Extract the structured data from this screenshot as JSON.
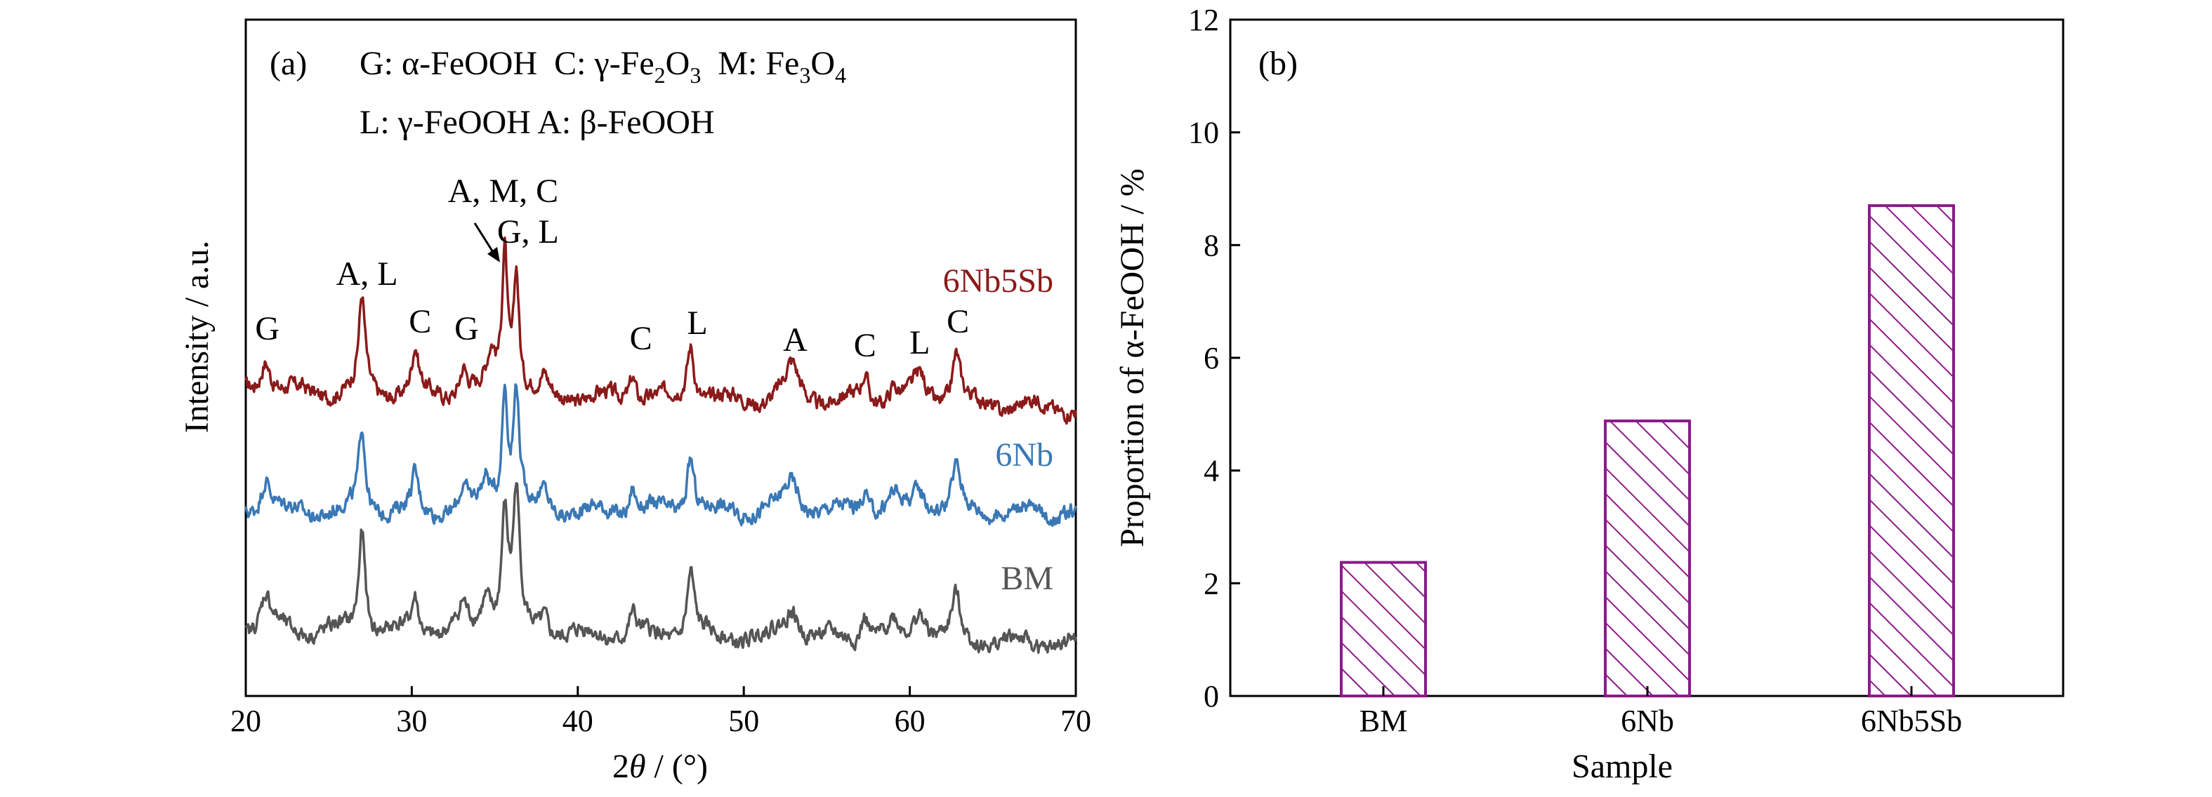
{
  "chart_data": [
    {
      "type": "line",
      "panel_label": "(a)",
      "xlabel": "2θ / (°)",
      "ylabel": "Intensity / a.u.",
      "xlim": [
        20,
        70
      ],
      "xticks": [
        20,
        30,
        40,
        50,
        60,
        70
      ],
      "legend_lines": [
        [
          {
            "text": "G: α-FeOOH  C: γ-Fe"
          },
          {
            "text": "2",
            "sub": true
          },
          {
            "text": "O"
          },
          {
            "text": "3",
            "sub": true
          },
          {
            "text": "  M: Fe"
          },
          {
            "text": "3",
            "sub": true
          },
          {
            "text": "O"
          },
          {
            "text": "4",
            "sub": true
          }
        ],
        [
          {
            "text": "L: γ-FeOOH A: β-FeOOH"
          }
        ]
      ],
      "annotations": [
        {
          "text": "G",
          "x": 21.3
        },
        {
          "text": "A, L",
          "x": 27.3
        },
        {
          "text": "C",
          "x": 30.5
        },
        {
          "text": "G",
          "x": 33.3
        },
        {
          "text": "A, M, C",
          "x": 35.5
        },
        {
          "text": "G, L",
          "x": 37.0
        },
        {
          "text": "C",
          "x": 43.8
        },
        {
          "text": "L",
          "x": 47.2
        },
        {
          "text": "A",
          "x": 53.1
        },
        {
          "text": "C",
          "x": 57.3
        },
        {
          "text": "L",
          "x": 60.6
        },
        {
          "text": "C",
          "x": 62.9
        }
      ],
      "series": [
        {
          "name": "6Nb5Sb",
          "color": "#8B1A1A",
          "peaks": [
            [
              21.2,
              0.45,
              0.55
            ],
            [
              27.0,
              1.2,
              0.35
            ],
            [
              30.2,
              0.55,
              0.35
            ],
            [
              33.1,
              0.35,
              0.4
            ],
            [
              34.8,
              0.5,
              0.5
            ],
            [
              35.6,
              1.85,
              0.3
            ],
            [
              36.3,
              1.6,
              0.3
            ],
            [
              38.0,
              0.2,
              0.4
            ],
            [
              43.3,
              0.35,
              0.35
            ],
            [
              46.8,
              0.75,
              0.4
            ],
            [
              52.9,
              0.45,
              0.8
            ],
            [
              57.3,
              0.35,
              0.4
            ],
            [
              59.0,
              0.2,
              0.5
            ],
            [
              60.6,
              0.35,
              0.7
            ],
            [
              62.8,
              0.65,
              0.45
            ]
          ]
        },
        {
          "name": "6Nb",
          "color": "#3A78B5",
          "peaks": [
            [
              21.2,
              0.45,
              0.55
            ],
            [
              27.0,
              1.1,
              0.35
            ],
            [
              30.2,
              0.45,
              0.35
            ],
            [
              33.1,
              0.25,
              0.4
            ],
            [
              34.5,
              0.4,
              0.6
            ],
            [
              35.6,
              1.55,
              0.32
            ],
            [
              36.3,
              1.55,
              0.32
            ],
            [
              38.0,
              0.25,
              0.4
            ],
            [
              43.3,
              0.35,
              0.35
            ],
            [
              46.8,
              0.75,
              0.4
            ],
            [
              52.9,
              0.4,
              0.8
            ],
            [
              57.3,
              0.3,
              0.4
            ],
            [
              59.0,
              0.2,
              0.5
            ],
            [
              60.6,
              0.3,
              0.7
            ],
            [
              62.8,
              0.55,
              0.45
            ]
          ]
        },
        {
          "name": "BM",
          "color": "#555555",
          "peaks": [
            [
              21.2,
              0.45,
              0.55
            ],
            [
              27.0,
              1.35,
              0.35
            ],
            [
              30.2,
              0.45,
              0.35
            ],
            [
              33.1,
              0.3,
              0.45
            ],
            [
              34.5,
              0.45,
              0.6
            ],
            [
              35.6,
              1.5,
              0.35
            ],
            [
              36.3,
              1.75,
              0.35
            ],
            [
              38.0,
              0.25,
              0.4
            ],
            [
              43.3,
              0.3,
              0.35
            ],
            [
              46.8,
              0.85,
              0.4
            ],
            [
              52.9,
              0.4,
              0.8
            ],
            [
              57.3,
              0.35,
              0.4
            ],
            [
              59.0,
              0.2,
              0.5
            ],
            [
              60.6,
              0.4,
              0.7
            ],
            [
              62.8,
              0.55,
              0.45
            ]
          ]
        }
      ]
    },
    {
      "type": "bar",
      "panel_label": "(b)",
      "categories": [
        "BM",
        "6Nb",
        "6Nb5Sb"
      ],
      "values": [
        2.37,
        4.88,
        8.7
      ],
      "xlabel": "Sample",
      "ylabel": "Proportion of α-FeOOH / %",
      "ylim": [
        0,
        12
      ],
      "yticks": [
        0,
        2,
        4,
        6,
        8,
        10,
        12
      ],
      "bar_color": "#8B1A8B",
      "fill": "diagonal-hatch"
    }
  ]
}
